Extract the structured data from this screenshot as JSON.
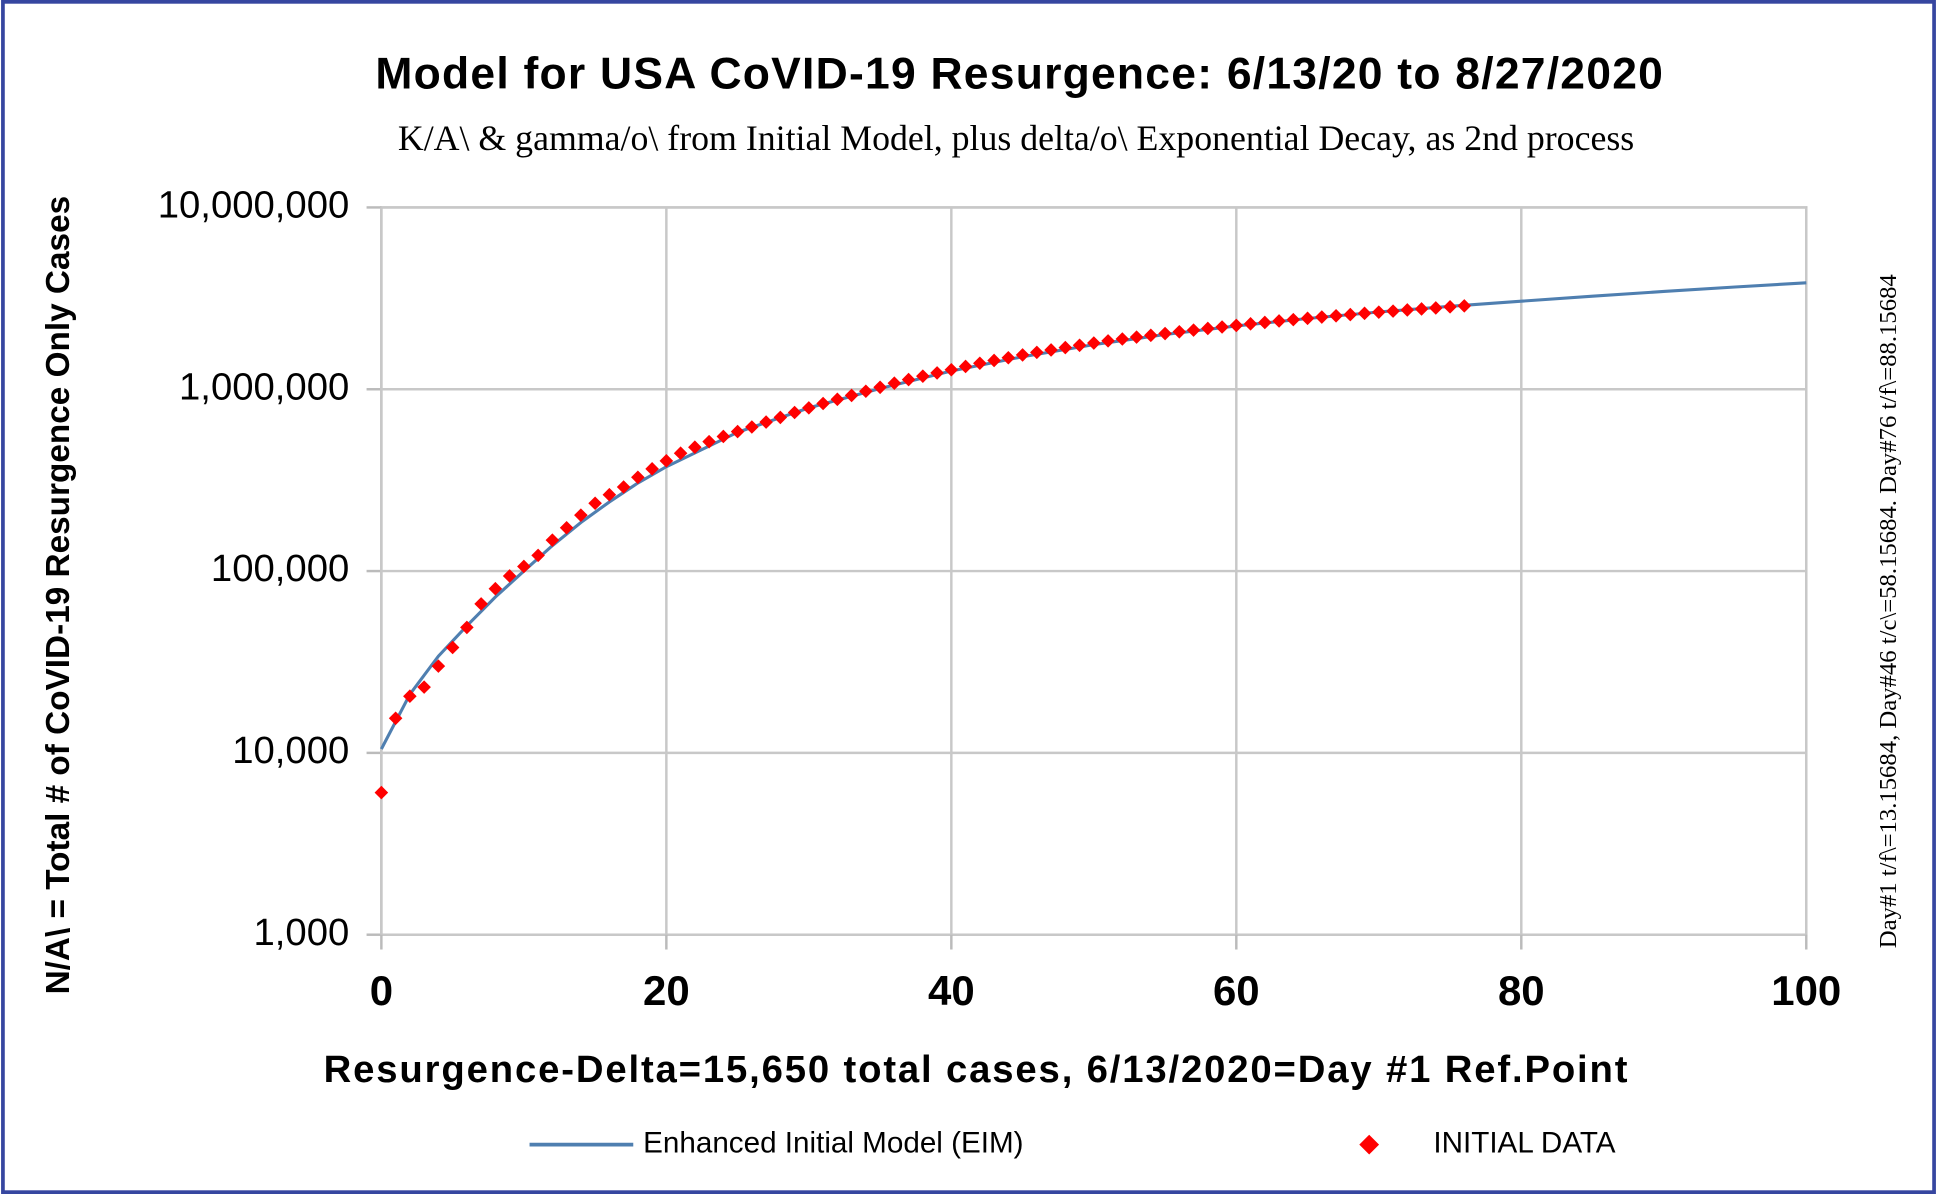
{
  "chart_data": {
    "type": "scatter",
    "title": "Model for USA CoVID-19 Resurgence: 6/13/20 to 8/27/2020",
    "subtitle": "K/A\\ & gamma/o\\ from Initial Model, plus delta/o\\ Exponential Decay, as 2nd process",
    "x_label": "Resurgence-Delta=15,650 total cases, 6/13/2020=Day #1 Ref.Point",
    "y_label": "N/A\\ = Total  # of CoVID-19 Resurgence Only Cases",
    "annotation": "Day#1 t/f\\=13.15684,  Day#46  t/c\\=58.15684. Day#76 t/f\\=88.15684",
    "xlim": [
      0,
      100
    ],
    "xticks": [
      0,
      20,
      40,
      60,
      80,
      100
    ],
    "ylim": [
      1000,
      10000000
    ],
    "yticks": [
      {
        "value": 1000,
        "label": "1,000"
      },
      {
        "value": 10000,
        "label": "10,000"
      },
      {
        "value": 100000,
        "label": "100,000"
      },
      {
        "value": 1000000,
        "label": "1,000,000"
      },
      {
        "value": 10000000,
        "label": "10,000,000"
      }
    ],
    "y_scale": "log",
    "grid": true,
    "series": [
      {
        "name": "Enhanced Initial Model (EIM)",
        "color": "#4f7fb0",
        "mode": "line",
        "x": [
          0,
          2,
          4,
          6,
          8,
          10,
          12,
          14,
          16,
          18,
          20,
          25,
          30,
          35,
          40,
          45,
          50,
          55,
          60,
          65,
          70,
          75,
          80,
          85,
          90,
          95,
          100
        ],
        "values": [
          10500,
          21000,
          34000,
          50000,
          72000,
          100000,
          138000,
          185000,
          240000,
          305000,
          375000,
          580000,
          790000,
          1010000,
          1260000,
          1510000,
          1760000,
          2000000,
          2230000,
          2450000,
          2660000,
          2860000,
          3050000,
          3250000,
          3450000,
          3650000,
          3850000
        ]
      },
      {
        "name": "INITIAL DATA",
        "color": "#ff0000",
        "mode": "markers",
        "x": [
          0,
          1,
          2,
          3,
          4,
          5,
          6,
          7,
          8,
          9,
          10,
          11,
          12,
          13,
          14,
          15,
          16,
          17,
          18,
          19,
          20,
          21,
          22,
          23,
          24,
          25,
          26,
          27,
          28,
          29,
          30,
          31,
          32,
          33,
          34,
          35,
          36,
          37,
          38,
          39,
          40,
          41,
          42,
          43,
          44,
          45,
          46,
          47,
          48,
          49,
          50,
          51,
          52,
          53,
          54,
          55,
          56,
          57,
          58,
          59,
          60,
          61,
          62,
          63,
          64,
          65,
          66,
          67,
          68,
          69,
          70,
          71,
          72,
          73,
          74,
          75,
          76
        ],
        "values": [
          6050,
          15500,
          20500,
          23000,
          30000,
          38000,
          49000,
          66000,
          80000,
          94000,
          106000,
          122000,
          148000,
          173000,
          203000,
          236000,
          263000,
          290000,
          328000,
          365000,
          404000,
          445000,
          480000,
          515000,
          550000,
          585000,
          620000,
          660000,
          700000,
          745000,
          790000,
          835000,
          880000,
          925000,
          975000,
          1025000,
          1080000,
          1130000,
          1180000,
          1230000,
          1280000,
          1335000,
          1390000,
          1440000,
          1490000,
          1545000,
          1595000,
          1645000,
          1695000,
          1745000,
          1795000,
          1845000,
          1890000,
          1935000,
          1980000,
          2025000,
          2070000,
          2115000,
          2160000,
          2200000,
          2245000,
          2290000,
          2330000,
          2375000,
          2415000,
          2455000,
          2495000,
          2535000,
          2575000,
          2615000,
          2655000,
          2690000,
          2730000,
          2765000,
          2800000,
          2840000,
          2875000
        ]
      }
    ]
  }
}
